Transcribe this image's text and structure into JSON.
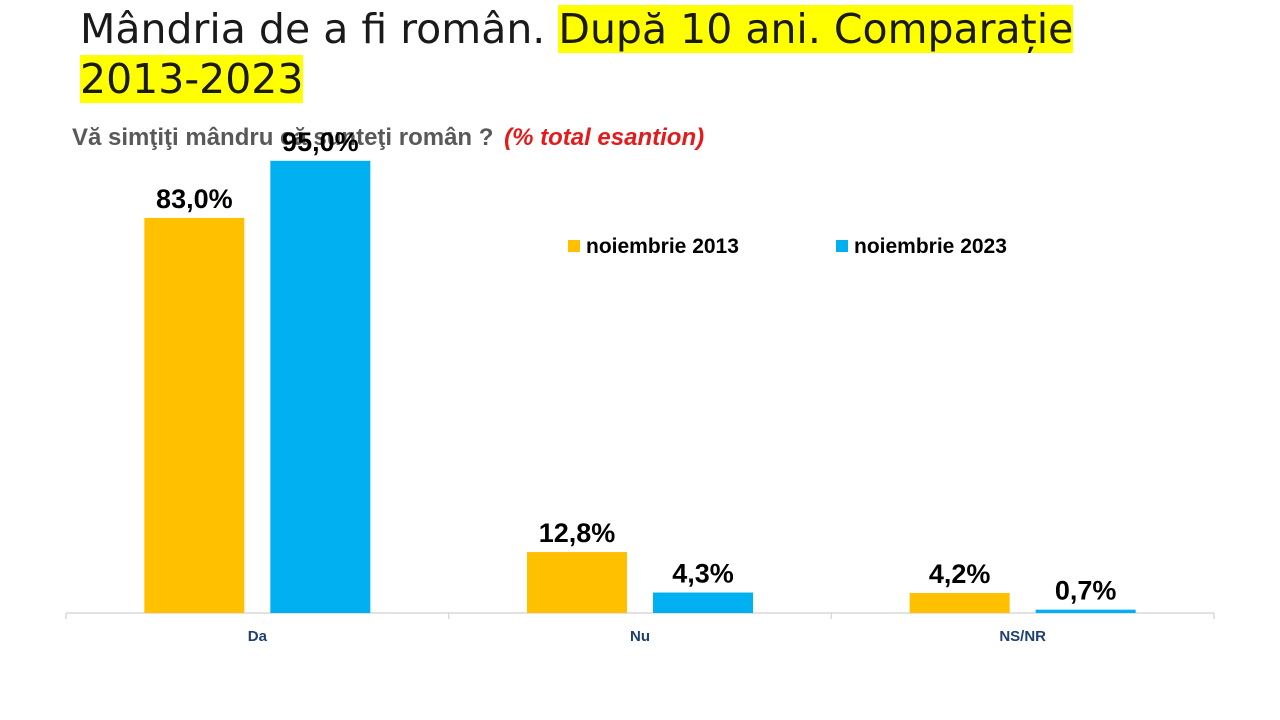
{
  "slide": {
    "title_plain": "Mândria de a fi român. ",
    "title_highlight": "După 10 ani. Comparație 2013-2023",
    "question": "Vă simţiţi mândru că sunteţi român ?",
    "question_note": "(% total esantion)"
  },
  "chart_data": {
    "type": "bar",
    "title": "Vă simţiţi mândru că sunteţi român ?",
    "xlabel": "",
    "ylabel": "",
    "ylim": [
      0,
      100
    ],
    "grid": false,
    "legend_position": "top-right",
    "categories": [
      "Da",
      "Nu",
      "NS/NR"
    ],
    "series": [
      {
        "name": "noiembrie 2013",
        "color": "#ffc000",
        "values": [
          83.0,
          12.8,
          4.2
        ],
        "labels": [
          "83,0%",
          "12,8%",
          "4,2%"
        ]
      },
      {
        "name": "noiembrie 2023",
        "color": "#00b0f0",
        "values": [
          95.0,
          4.3,
          0.7
        ],
        "labels": [
          "95,0%",
          "4,3%",
          "0,7%"
        ]
      }
    ]
  }
}
